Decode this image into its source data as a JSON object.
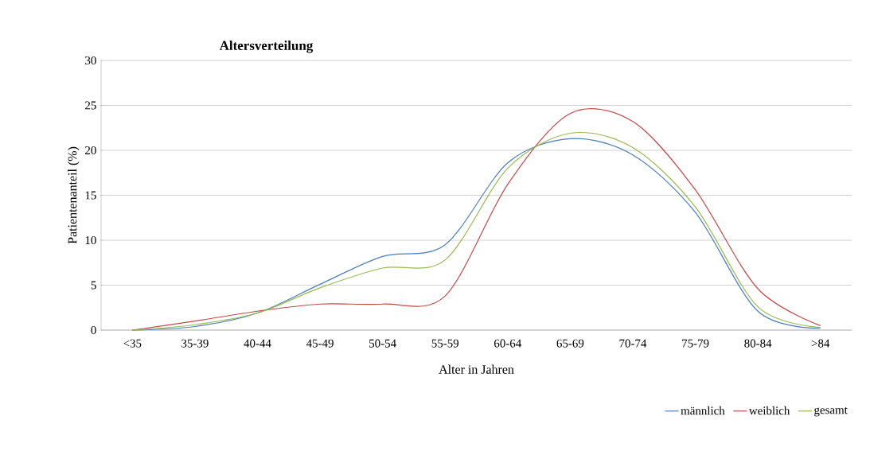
{
  "chart_data": {
    "type": "line",
    "title": "Altersverteilung",
    "xlabel": "Alter in Jahren",
    "ylabel": "Patientenanteil (%)",
    "categories": [
      "<35",
      "35-39",
      "40-44",
      "45-49",
      "50-54",
      "55-59",
      "60-64",
      "65-69",
      "70-74",
      "75-79",
      "80-84",
      ">84"
    ],
    "series": [
      {
        "name": "männlich",
        "color": "#4a7ebb",
        "values": [
          0,
          0.4,
          1.9,
          5.1,
          8.2,
          9.5,
          18.6,
          21.3,
          19.5,
          13.1,
          2.1,
          0.2
        ]
      },
      {
        "name": "weiblich",
        "color": "#be4b48",
        "values": [
          0,
          1.0,
          2.1,
          2.9,
          2.9,
          3.8,
          16.2,
          24.1,
          23.2,
          15.6,
          4.6,
          0.5
        ]
      },
      {
        "name": "gesamt",
        "color": "#98b954",
        "values": [
          0,
          0.6,
          1.9,
          4.7,
          6.9,
          7.8,
          18.0,
          21.9,
          20.3,
          13.7,
          2.6,
          0.3
        ]
      }
    ],
    "ylim": [
      0,
      30
    ],
    "yticks": [
      0,
      5,
      10,
      15,
      20,
      25,
      30
    ],
    "grid": "y",
    "legend": "bottom right",
    "marker": "none",
    "line_style": "solid"
  }
}
